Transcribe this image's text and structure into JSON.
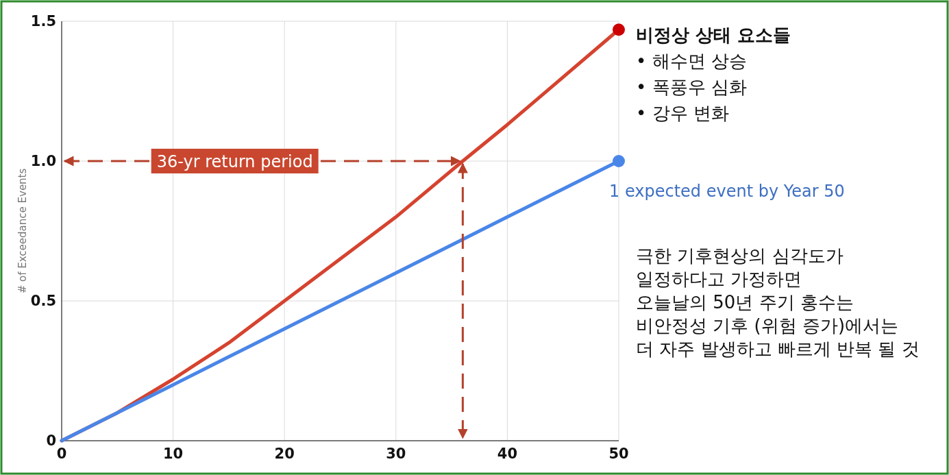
{
  "chart_data": {
    "type": "line",
    "ylabel": "# of Exceedance Events",
    "x": [
      0,
      5,
      10,
      15,
      20,
      25,
      30,
      36,
      40,
      45,
      50
    ],
    "series": [
      {
        "color": "#d5432f",
        "values": [
          0,
          0.1,
          0.22,
          0.35,
          0.5,
          0.65,
          0.8,
          1.0,
          1.13,
          1.3,
          1.47
        ]
      },
      {
        "color": "#4a86e8",
        "values": [
          0,
          0.1,
          0.2,
          0.3,
          0.4,
          0.5,
          0.6,
          0.72,
          0.8,
          0.9,
          1.0
        ]
      },
      {
        "type": "scatter",
        "marker": "circle",
        "color": "#cc0000",
        "x": [
          50
        ],
        "values": [
          1.47
        ]
      },
      {
        "type": "scatter",
        "marker": "circle",
        "color": "#4a86e8",
        "x": [
          50
        ],
        "values": [
          1.0
        ]
      }
    ],
    "xlim": [
      0,
      50
    ],
    "ylim": [
      0,
      1.5
    ],
    "xticks": [
      0,
      10,
      20,
      30,
      40,
      50
    ],
    "yticks": [
      0,
      {
        "value": 0.5,
        "label": "0.5"
      },
      {
        "value": 1,
        "label": "1.0"
      },
      {
        "value": 1.5,
        "label": "1.5"
      }
    ],
    "grid": true,
    "marker": "none",
    "line_style": "solid",
    "ref_lines": [
      {
        "axis": "y",
        "value": 1.0,
        "label": "36-yr return period",
        "color": "#b5412b",
        "line_style": "dashed"
      },
      {
        "axis": "x",
        "value": 36,
        "color": "#b5412b",
        "line_style": "dashed"
      }
    ],
    "annotations": [
      "비정상 상태 요소들\n• 해수면 상승\n• 폭풍우 심화\n• 강우 변화",
      {
        "text": "1 expected event by Year 50",
        "x": 50,
        "y": 1.0
      },
      "극한 기후현상의 심각도가\n일정하다고 가정하면\n오늘날의 50년 주기 홍수는\n비안정성 기후 (위험 증가)에서는\n더 자주 발생하고 빠르게 반복 될 것"
    ]
  }
}
